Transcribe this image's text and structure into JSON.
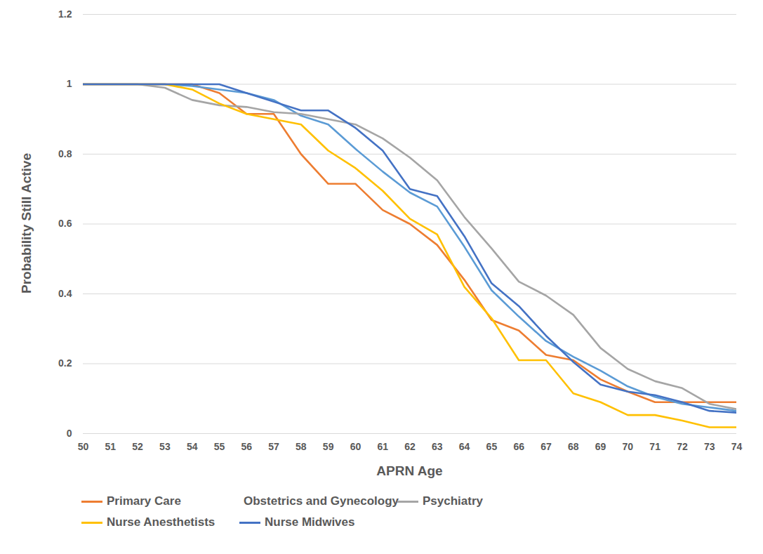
{
  "chart_data": {
    "type": "line",
    "x_label": "APRN Age",
    "y_label": "Probability Still Active",
    "x": [
      50,
      51,
      52,
      53,
      54,
      55,
      56,
      57,
      58,
      59,
      60,
      61,
      62,
      63,
      64,
      65,
      66,
      67,
      68,
      69,
      70,
      71,
      72,
      73,
      74
    ],
    "xlim": [
      50,
      74
    ],
    "xticks": [
      50,
      51,
      52,
      53,
      54,
      55,
      56,
      57,
      58,
      59,
      60,
      61,
      62,
      63,
      64,
      65,
      66,
      67,
      68,
      69,
      70,
      71,
      72,
      73,
      74
    ],
    "ylim": [
      0,
      1.2
    ],
    "yticks": [
      0,
      0.2,
      0.4,
      0.6,
      0.8,
      1,
      1.2
    ],
    "grid": true,
    "legend": "bottom",
    "series": [
      {
        "name": "Primary Care",
        "color": "#ED7D31",
        "line_style": "solid",
        "values": [
          1,
          1,
          1,
          1,
          1,
          0.975,
          0.915,
          0.915,
          0.8,
          0.715,
          0.715,
          0.64,
          0.6,
          0.54,
          0.44,
          0.325,
          0.295,
          0.225,
          0.21,
          0.155,
          0.12,
          0.09,
          0.09,
          0.09,
          0.09
        ]
      },
      {
        "name": "Obstetrics and Gynecology",
        "color": "#5B9BD5",
        "line_style": "solid",
        "values": [
          1,
          1,
          1,
          1,
          0.995,
          0.985,
          0.975,
          0.955,
          0.91,
          0.885,
          0.815,
          0.75,
          0.69,
          0.65,
          0.535,
          0.41,
          0.335,
          0.265,
          0.22,
          0.18,
          0.135,
          0.105,
          0.085,
          0.075,
          0.065
        ]
      },
      {
        "name": "Psychiatry",
        "color": "#A5A5A5",
        "line_style": "solid",
        "values": [
          1,
          1,
          1,
          0.99,
          0.955,
          0.94,
          0.935,
          0.92,
          0.915,
          0.9,
          0.885,
          0.845,
          0.79,
          0.725,
          0.62,
          0.53,
          0.435,
          0.395,
          0.34,
          0.245,
          0.185,
          0.15,
          0.13,
          0.085,
          0.07
        ]
      },
      {
        "name": "Nurse Anesthetists",
        "color": "#FFC000",
        "line_style": "solid",
        "values": [
          1,
          1,
          1,
          1,
          0.985,
          0.945,
          0.915,
          0.9,
          0.885,
          0.81,
          0.76,
          0.695,
          0.615,
          0.57,
          0.42,
          0.33,
          0.21,
          0.21,
          0.115,
          0.09,
          0.053,
          0.053,
          0.037,
          0.018,
          0.018
        ]
      },
      {
        "name": "Nurse Midwives",
        "color": "#4472C4",
        "line_style": "solid",
        "values": [
          1,
          1,
          1,
          1,
          1,
          1,
          0.975,
          0.95,
          0.925,
          0.925,
          0.875,
          0.81,
          0.7,
          0.68,
          0.565,
          0.43,
          0.365,
          0.28,
          0.205,
          0.14,
          0.12,
          0.11,
          0.09,
          0.065,
          0.06
        ]
      }
    ]
  }
}
